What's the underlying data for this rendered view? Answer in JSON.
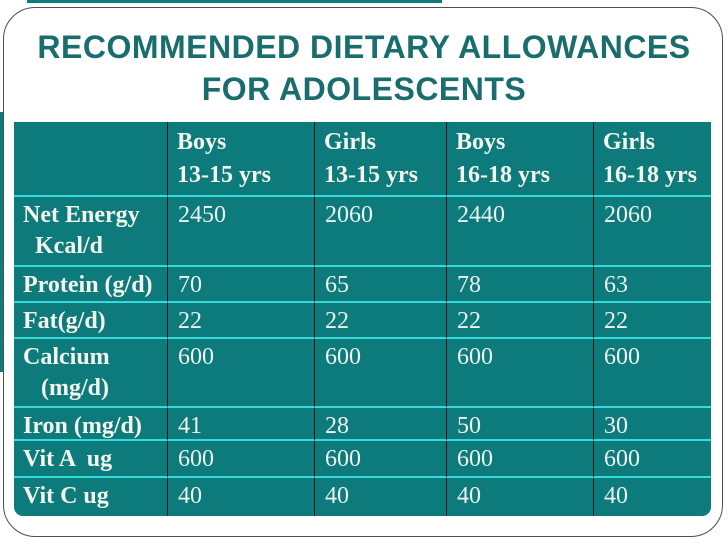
{
  "slide": {
    "title_line1": "RECOMMENDED DIETARY ALLOWANCES",
    "title_line2": "FOR ADOLESCENTS"
  },
  "table": {
    "columns": [
      "",
      "Boys\n13-15 yrs",
      "Girls\n13-15 yrs",
      "Boys\n16-18 yrs",
      "Girls\n16-18 yrs"
    ],
    "rows": [
      {
        "label": "Net Energy\n  Kcal/d",
        "values": [
          "2450",
          "2060",
          "2440",
          "2060"
        ]
      },
      {
        "label": "Protein (g/d)",
        "values": [
          "70",
          "65",
          "78",
          "63"
        ]
      },
      {
        "label": "Fat(g/d)",
        "values": [
          "22",
          "22",
          "22",
          "22"
        ]
      },
      {
        "label": "Calcium\n   (mg/d)",
        "values": [
          "600",
          "600",
          "600",
          "600"
        ]
      },
      {
        "label": "Iron (mg/d)",
        "values": [
          "41",
          "28",
          "50",
          "30"
        ]
      },
      {
        "label": "Vit A  ug",
        "values": [
          "600",
          "600",
          "600",
          "600"
        ]
      },
      {
        "label": "Vit C ug",
        "values": [
          "40",
          "40",
          "40",
          "40"
        ]
      }
    ]
  },
  "colors": {
    "table_background": "#0d7b7b",
    "row_divider": "#38d9d9",
    "column_divider": "#141414",
    "title_text": "#1a6d6d",
    "cell_text": "#f4f6ee",
    "slide_border": "#4f4f4f",
    "edge_accent": "#0d7b7b"
  }
}
